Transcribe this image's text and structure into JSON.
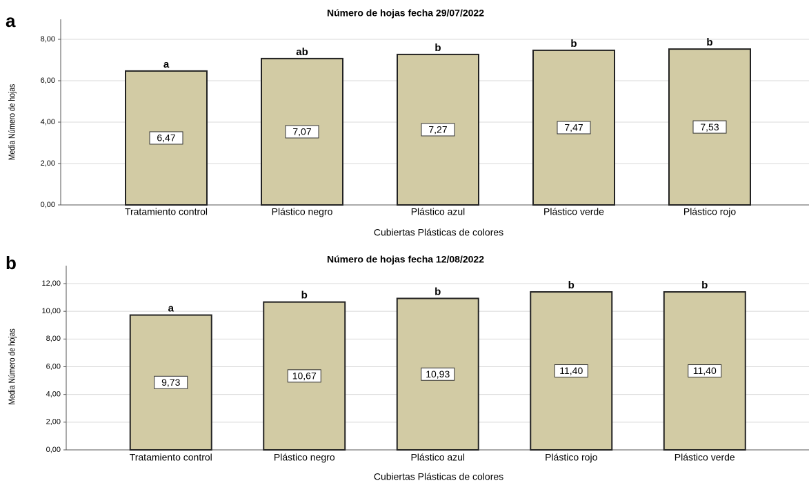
{
  "chart_data": [
    {
      "type": "bar",
      "panel_label": "a",
      "title": "Número de hojas fecha 29/07/2022",
      "x_label": "Cubiertas Plásticas de colores",
      "y_label": "Media Número de hojas",
      "categories": [
        "Tratamiento control",
        "Plástico negro",
        "Plástico azul",
        "Plástico verde",
        "Plástico rojo"
      ],
      "values": [
        6.47,
        7.07,
        7.27,
        7.47,
        7.53
      ],
      "value_labels": [
        "6,47",
        "7,07",
        "7,27",
        "7,47",
        "7,53"
      ],
      "letters": [
        "a",
        "ab",
        "b",
        "b",
        "b"
      ],
      "color": "#d2cba4",
      "grid": true,
      "ylim": [
        0,
        8
      ],
      "yticks": [
        {
          "value": 0,
          "label": "0,00"
        },
        {
          "value": 2,
          "label": "2,00"
        },
        {
          "value": 4,
          "label": "4,00"
        },
        {
          "value": 6,
          "label": "6,00"
        },
        {
          "value": 8,
          "label": "8,00"
        }
      ]
    },
    {
      "type": "bar",
      "panel_label": "b",
      "title": "Número de hojas fecha 12/08/2022",
      "x_label": "Cubiertas Plásticas de colores",
      "y_label": "Media Número de hojas",
      "categories": [
        "Tratamiento control",
        "Plástico negro",
        "Plástico azul",
        "Plástico rojo",
        "Plástico verde"
      ],
      "values": [
        9.73,
        10.67,
        10.93,
        11.4,
        11.4
      ],
      "value_labels": [
        "9,73",
        "10,67",
        "10,93",
        "11,40",
        "11,40"
      ],
      "letters": [
        "a",
        "b",
        "b",
        "b",
        "b"
      ],
      "color": "#d2cba4",
      "grid": true,
      "ylim": [
        0,
        12
      ],
      "yticks": [
        {
          "value": 0,
          "label": "0,00"
        },
        {
          "value": 2,
          "label": "2,00"
        },
        {
          "value": 4,
          "label": "4,00"
        },
        {
          "value": 6,
          "label": "6,00"
        },
        {
          "value": 8,
          "label": "8,00"
        },
        {
          "value": 10,
          "label": "10,00"
        },
        {
          "value": 12,
          "label": "12,00"
        }
      ]
    }
  ]
}
